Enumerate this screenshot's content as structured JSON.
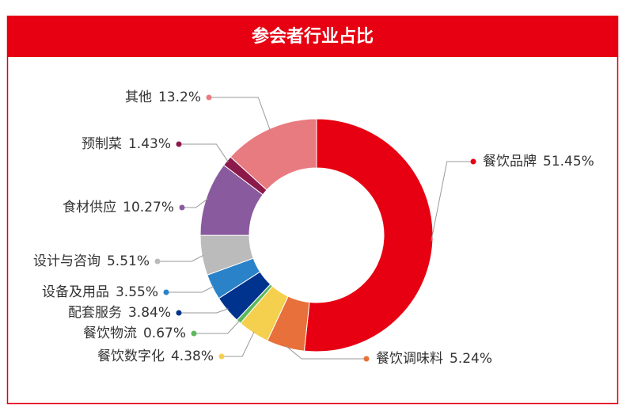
{
  "chart_data": {
    "type": "donut",
    "title": "参会者行业占比",
    "categories": [
      "餐饮品牌",
      "餐饮调味料",
      "餐饮数字化",
      "餐饮物流",
      "配套服务",
      "设备及用品",
      "设计与咨询",
      "食材供应",
      "预制菜",
      "其他"
    ],
    "values": [
      51.45,
      5.24,
      4.38,
      0.67,
      3.84,
      3.55,
      5.51,
      10.27,
      1.43,
      13.2
    ],
    "value_labels": [
      "51.45%",
      "5.24%",
      "4.38%",
      "0.67%",
      "3.84%",
      "3.55%",
      "5.51%",
      "10.27%",
      "1.43%",
      "13.2%"
    ],
    "colors": [
      "#e60012",
      "#e8703a",
      "#f5d04e",
      "#5cb85c",
      "#00338d",
      "#2a82c9",
      "#bbbbbb",
      "#8a5a9e",
      "#8b1a4a",
      "#e87b80"
    ]
  }
}
